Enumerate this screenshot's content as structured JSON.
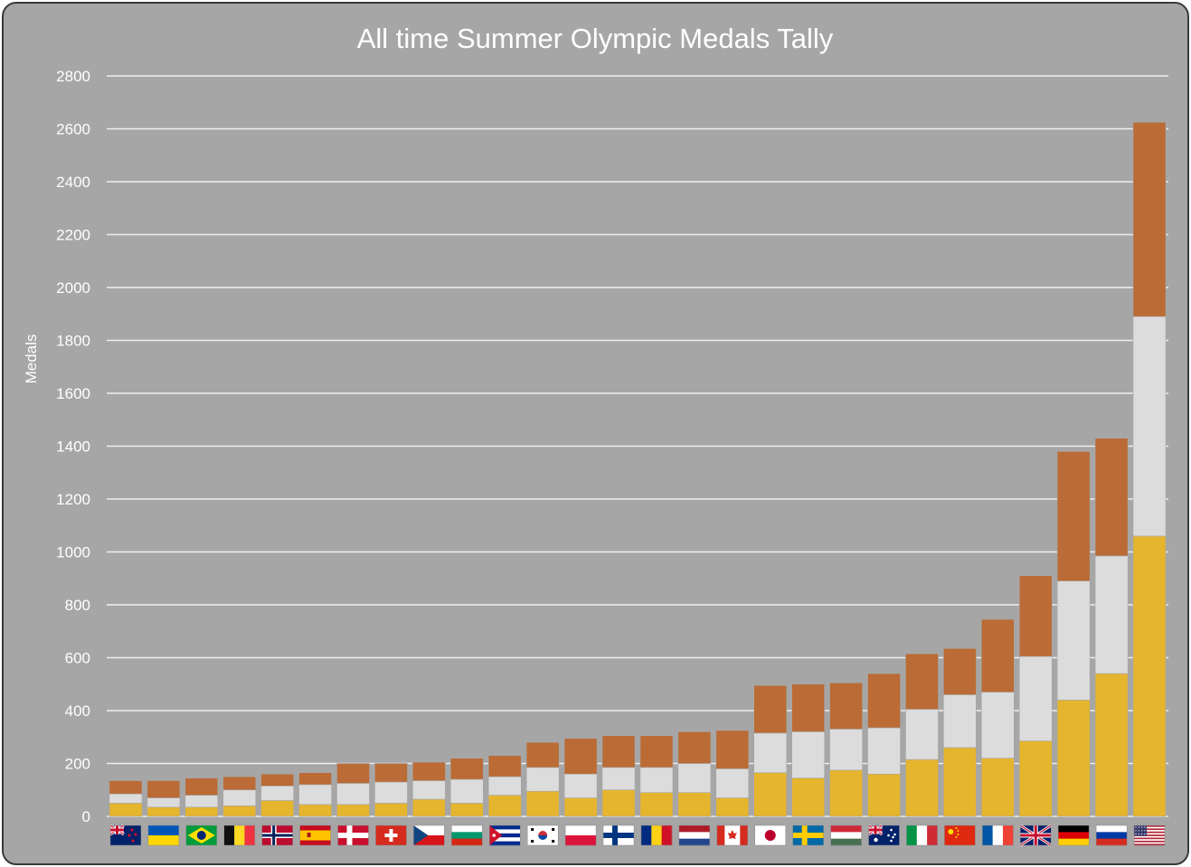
{
  "chart_data": {
    "type": "bar",
    "stacked": true,
    "title": "All time Summer Olympic Medals Tally",
    "ylabel": "Medals",
    "xlabel": "",
    "ylim": [
      0,
      2800
    ],
    "yticks": [
      0,
      200,
      400,
      600,
      800,
      1000,
      1200,
      1400,
      1600,
      1800,
      2000,
      2200,
      2400,
      2600,
      2800
    ],
    "grid": true,
    "legend": "none",
    "categories": [
      "New Zealand",
      "Ukraine",
      "Brazil",
      "Belgium",
      "Norway",
      "Spain",
      "Denmark",
      "Switzerland",
      "Czech Republic",
      "Bulgaria",
      "Cuba",
      "South Korea",
      "Poland",
      "Finland",
      "Romania",
      "Netherlands",
      "Canada",
      "Japan",
      "Sweden",
      "Hungary",
      "Australia",
      "Italy",
      "China",
      "France",
      "Great Britain",
      "Germany",
      "Russia",
      "United States"
    ],
    "flags": [
      "nz",
      "ua",
      "br",
      "be",
      "no",
      "es",
      "dk",
      "ch",
      "cz",
      "bg",
      "cu",
      "kr",
      "pl",
      "fi",
      "ro",
      "nl",
      "ca",
      "jp",
      "se",
      "hu",
      "au",
      "it",
      "cn",
      "fr",
      "gb",
      "de",
      "ru",
      "us"
    ],
    "series": [
      {
        "name": "Gold",
        "color": "#e6b52e",
        "values": [
          50,
          35,
          35,
          40,
          60,
          45,
          45,
          50,
          65,
          50,
          80,
          95,
          70,
          100,
          90,
          90,
          70,
          165,
          145,
          175,
          160,
          215,
          260,
          220,
          285,
          440,
          540,
          1060
        ]
      },
      {
        "name": "Silver",
        "color": "#dcdcdc",
        "values": [
          35,
          35,
          45,
          60,
          55,
          75,
          80,
          80,
          70,
          90,
          70,
          90,
          90,
          85,
          95,
          110,
          110,
          150,
          175,
          155,
          175,
          190,
          200,
          250,
          320,
          450,
          445,
          830
        ]
      },
      {
        "name": "Bronze",
        "color": "#bb6b35",
        "values": [
          50,
          65,
          65,
          50,
          45,
          45,
          75,
          70,
          70,
          80,
          80,
          95,
          135,
          120,
          120,
          120,
          145,
          180,
          180,
          175,
          205,
          210,
          175,
          275,
          305,
          490,
          445,
          735
        ]
      }
    ]
  }
}
